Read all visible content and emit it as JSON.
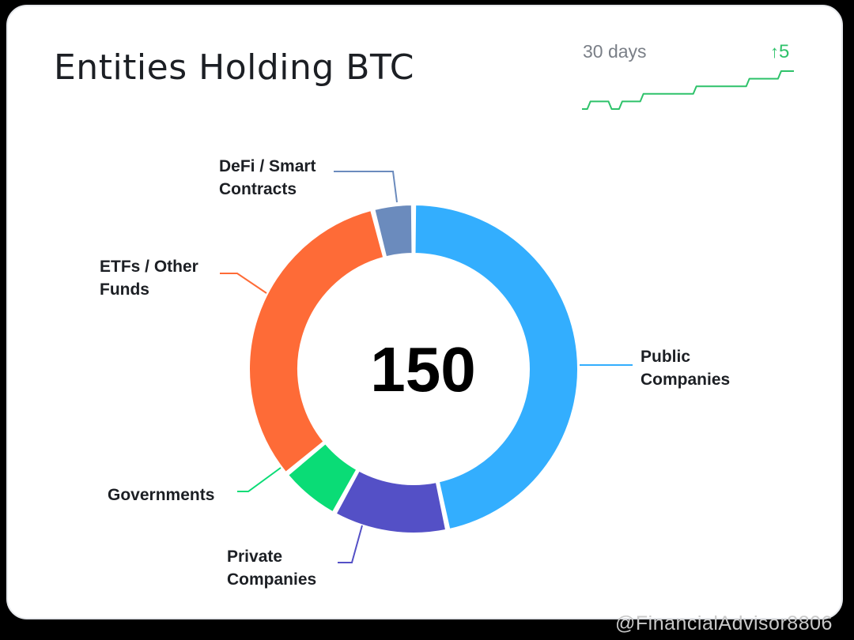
{
  "card": {
    "title": "Entities Holding BTC"
  },
  "sparkline": {
    "period_label": "30 days",
    "change_arrow": "↑",
    "change_value": "5",
    "color": "#2ec26a",
    "values": [
      145,
      146,
      146,
      145,
      146,
      146,
      147,
      147,
      147,
      147,
      147,
      148,
      148,
      148,
      148,
      148,
      149,
      149,
      149,
      150,
      150
    ]
  },
  "chart_data": {
    "type": "pie",
    "style": "donut",
    "center_label": "150",
    "slices": [
      {
        "label": "Public Companies",
        "value": 70,
        "color": "#33aefe"
      },
      {
        "label": "Private Companies",
        "value": 17,
        "color": "#5450c6"
      },
      {
        "label": "Governments",
        "value": 9,
        "color": "#0adc76"
      },
      {
        "label": "ETFs / Other Funds",
        "value": 48,
        "color": "#fe6b37"
      },
      {
        "label": "DeFi / Smart Contracts",
        "value": 6,
        "color": "#6b8bbd"
      }
    ]
  },
  "watermark": "@FinancialAdvisor8806"
}
